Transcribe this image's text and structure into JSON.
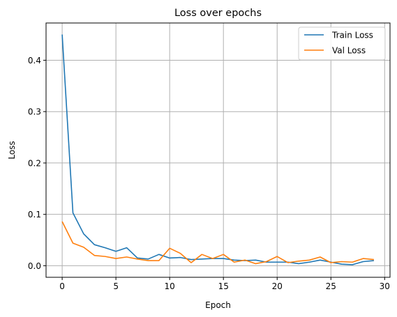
{
  "chart_data": {
    "type": "line",
    "title": "Loss over epochs",
    "xlabel": "Epoch",
    "ylabel": "Loss",
    "xlim": [
      -1.5,
      30.5
    ],
    "ylim": [
      -0.0225,
      0.4725
    ],
    "xticks": [
      0,
      5,
      10,
      15,
      20,
      25,
      30
    ],
    "xtick_labels": [
      "0",
      "5",
      "10",
      "15",
      "20",
      "25",
      "30"
    ],
    "yticks": [
      0.0,
      0.1,
      0.2,
      0.3,
      0.4
    ],
    "ytick_labels": [
      "0.0",
      "0.1",
      "0.2",
      "0.3",
      "0.4"
    ],
    "grid": true,
    "legend_position": "top-right",
    "x": [
      0,
      1,
      2,
      3,
      4,
      5,
      6,
      7,
      8,
      9,
      10,
      11,
      12,
      13,
      14,
      15,
      16,
      17,
      18,
      19,
      20,
      21,
      22,
      23,
      24,
      25,
      26,
      27,
      28,
      29
    ],
    "series": [
      {
        "name": "Train Loss",
        "color": "#1f77b4",
        "values": [
          0.45,
          0.103,
          0.062,
          0.041,
          0.035,
          0.028,
          0.035,
          0.015,
          0.013,
          0.022,
          0.015,
          0.016,
          0.012,
          0.013,
          0.014,
          0.014,
          0.011,
          0.01,
          0.011,
          0.007,
          0.007,
          0.007,
          0.004,
          0.007,
          0.011,
          0.007,
          0.003,
          0.002,
          0.008,
          0.01
        ]
      },
      {
        "name": "Val Loss",
        "color": "#ff7f0e",
        "values": [
          0.086,
          0.044,
          0.036,
          0.02,
          0.018,
          0.014,
          0.017,
          0.013,
          0.01,
          0.01,
          0.034,
          0.024,
          0.006,
          0.022,
          0.014,
          0.022,
          0.007,
          0.011,
          0.004,
          0.008,
          0.018,
          0.006,
          0.009,
          0.011,
          0.017,
          0.006,
          0.008,
          0.007,
          0.014,
          0.012
        ]
      }
    ]
  }
}
